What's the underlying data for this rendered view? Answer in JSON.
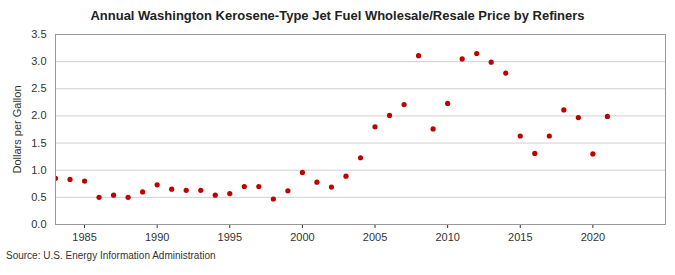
{
  "chart_data": {
    "type": "scatter",
    "title": "Annual Washington Kerosene-Type Jet Fuel Wholesale/Resale Price by Refiners",
    "y_label": "Dollars per Gallon",
    "source": "Source: U.S. Energy Information Administration",
    "x": [
      1983,
      1984,
      1985,
      1986,
      1987,
      1988,
      1989,
      1990,
      1991,
      1992,
      1993,
      1994,
      1995,
      1996,
      1997,
      1998,
      1999,
      2000,
      2001,
      2002,
      2003,
      2004,
      2005,
      2006,
      2007,
      2008,
      2009,
      2010,
      2011,
      2012,
      2013,
      2014,
      2015,
      2016,
      2017,
      2018,
      2019,
      2020,
      2021
    ],
    "values": [
      0.85,
      0.83,
      0.8,
      0.5,
      0.54,
      0.5,
      0.6,
      0.73,
      0.65,
      0.63,
      0.63,
      0.54,
      0.57,
      0.7,
      0.7,
      0.47,
      0.62,
      0.96,
      0.78,
      0.69,
      0.89,
      1.23,
      1.8,
      2.01,
      2.21,
      3.11,
      1.76,
      2.23,
      3.05,
      3.15,
      2.99,
      2.79,
      1.63,
      1.31,
      1.63,
      2.11,
      1.97,
      1.3,
      1.99
    ],
    "color": "#c00000",
    "marker": "circle",
    "xlim": [
      1983,
      2025
    ],
    "xticks": [
      1985,
      1990,
      1995,
      2000,
      2005,
      2010,
      2015,
      2020
    ],
    "ylim": [
      0,
      3.5
    ],
    "yticks": [
      {
        "value": 0,
        "label": "0.0"
      },
      0.5,
      {
        "value": 1,
        "label": "1.0"
      },
      1.5,
      {
        "value": 2,
        "label": "2.0"
      },
      2.5,
      {
        "value": 3,
        "label": "3.0"
      },
      3.5
    ],
    "grid": true
  }
}
